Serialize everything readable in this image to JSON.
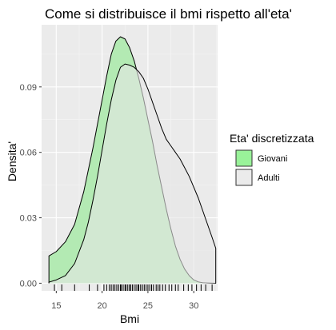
{
  "chart_data": {
    "type": "area",
    "title": "Come si distribuisce il bmi rispetto all'eta'",
    "xlabel": "Bmi",
    "ylabel": "Densita'",
    "xlim": [
      13.4,
      32.6
    ],
    "ylim": [
      -0.0035,
      0.1185
    ],
    "xticks": [
      15,
      20,
      25,
      30
    ],
    "xtick_labels": [
      "15",
      "20",
      "25",
      "30"
    ],
    "yticks": [
      0.0,
      0.03,
      0.06,
      0.09
    ],
    "ytick_labels": [
      "0.00",
      "0.03",
      "0.06",
      "0.09"
    ],
    "grid": true,
    "legend": {
      "title": "Eta' discretizzata",
      "placement": "right"
    },
    "series": [
      {
        "name": "Giovani",
        "color": "#b3eab3",
        "legend_swatch": "#99f299",
        "x": [
          14.2,
          15.0,
          16.0,
          17.0,
          18.0,
          19.0,
          20.0,
          20.5,
          21.0,
          21.5,
          22.0,
          22.5,
          23.0,
          23.5,
          24.0,
          24.5,
          25.0,
          25.5,
          26.0,
          26.5,
          27.0,
          27.5,
          28.0,
          28.5,
          29.0,
          29.5,
          30.0,
          30.5,
          31.0,
          31.5,
          32.4
        ],
        "y": [
          0.0125,
          0.0145,
          0.019,
          0.027,
          0.042,
          0.062,
          0.084,
          0.095,
          0.105,
          0.111,
          0.113,
          0.112,
          0.108,
          0.102,
          0.094,
          0.085,
          0.075,
          0.065,
          0.054,
          0.044,
          0.034,
          0.025,
          0.017,
          0.011,
          0.0065,
          0.0035,
          0.0015,
          0.0006,
          0.0002,
          0.0001,
          0.0
        ]
      },
      {
        "name": "Adulti",
        "color": "#e6e6e6",
        "legend_swatch": "#ebebeb",
        "x": [
          14.2,
          15.0,
          16.0,
          17.0,
          18.0,
          18.5,
          19.0,
          19.5,
          20.0,
          20.5,
          21.0,
          21.5,
          22.0,
          22.5,
          23.0,
          23.5,
          24.0,
          24.5,
          25.0,
          25.5,
          26.0,
          26.5,
          27.0,
          27.5,
          28.0,
          28.5,
          29.0,
          29.5,
          30.0,
          30.5,
          31.0,
          31.5,
          32.0,
          32.4
        ],
        "y": [
          0.0005,
          0.0015,
          0.0035,
          0.009,
          0.02,
          0.028,
          0.038,
          0.049,
          0.061,
          0.073,
          0.084,
          0.093,
          0.099,
          0.1005,
          0.1,
          0.099,
          0.097,
          0.094,
          0.089,
          0.083,
          0.077,
          0.071,
          0.066,
          0.063,
          0.06,
          0.057,
          0.053,
          0.049,
          0.044,
          0.039,
          0.033,
          0.027,
          0.021,
          0.016
        ]
      }
    ],
    "rug": [
      14.8,
      15.6,
      17.0,
      18.6,
      19.5,
      20.2,
      20.5,
      20.8,
      21.0,
      21.2,
      21.4,
      21.6,
      21.8,
      22.0,
      22.1,
      22.3,
      22.5,
      22.6,
      22.8,
      23.0,
      23.1,
      23.3,
      23.5,
      23.7,
      23.9,
      24.0,
      24.2,
      24.4,
      24.6,
      24.8,
      25.0,
      25.2,
      25.4,
      25.6,
      25.9,
      26.1,
      26.3,
      26.6,
      26.9,
      27.3,
      27.6,
      28.0,
      28.3,
      28.9,
      29.4,
      29.8,
      30.3,
      30.8,
      31.3,
      32.0
    ]
  }
}
